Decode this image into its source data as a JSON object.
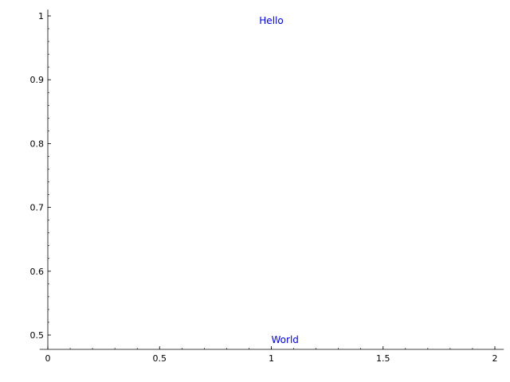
{
  "chart_data": {
    "type": "scatter",
    "title": "",
    "xlabel": "",
    "ylabel": "",
    "xlim": [
      -0.04,
      2.04
    ],
    "ylim": [
      0.478,
      1.01
    ],
    "grid": false,
    "x_ticks": [
      0,
      0.5,
      1,
      1.5,
      2
    ],
    "x_tick_labels": [
      "0",
      "0.5",
      "1",
      "1.5",
      "2"
    ],
    "x_minor_step": 0.1,
    "y_ticks": [
      0.5,
      0.6,
      0.7,
      0.8,
      0.9,
      1
    ],
    "y_tick_labels": [
      "0.5",
      "0.6",
      "0.7",
      "0.8",
      "0.9",
      "1"
    ],
    "y_minor_step": 0.02,
    "annotations": [
      {
        "text": "Hello",
        "x": 1,
        "y": 1,
        "align": "center",
        "color": "#0000ff"
      },
      {
        "text": "World",
        "x": 1,
        "y": 0.5,
        "align": "left",
        "color": "#0000ff"
      }
    ]
  }
}
